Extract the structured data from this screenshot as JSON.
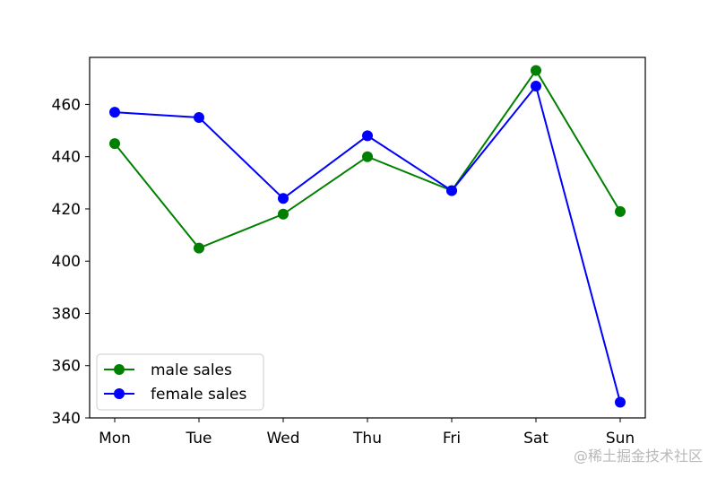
{
  "chart_data": {
    "type": "line",
    "categories": [
      "Mon",
      "Tue",
      "Wed",
      "Thu",
      "Fri",
      "Sat",
      "Sun"
    ],
    "series": [
      {
        "name": "male sales",
        "color": "#008000",
        "marker": "circle",
        "values": [
          445,
          405,
          418,
          440,
          427,
          473,
          419
        ]
      },
      {
        "name": "female sales",
        "color": "#0000ff",
        "marker": "circle",
        "values": [
          457,
          455,
          424,
          448,
          427,
          467,
          346
        ]
      }
    ],
    "title": "",
    "xlabel": "",
    "ylabel": "",
    "ylim": [
      340,
      478
    ],
    "yticks": [
      340,
      360,
      380,
      400,
      420,
      440,
      460
    ],
    "grid": false,
    "legend_position": "lower-left"
  },
  "watermark": "@稀土掘金技术社区"
}
